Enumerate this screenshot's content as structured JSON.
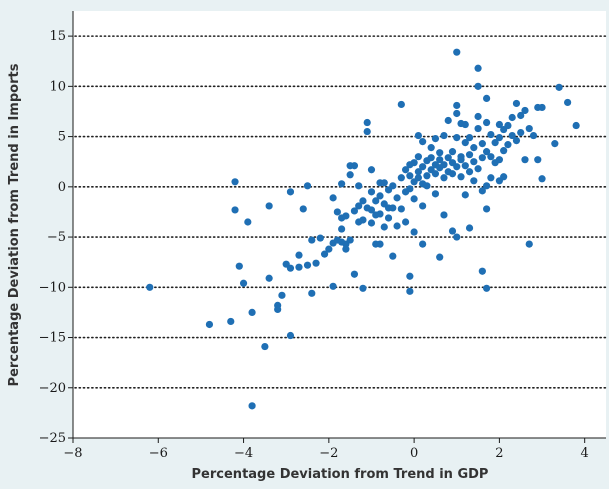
{
  "chart_data": {
    "type": "scatter",
    "title": "",
    "xlabel": "Percentage Deviation from Trend in GDP",
    "ylabel": "Percentage Deviation from Trend in Imports",
    "xlim": [
      -8,
      4.5
    ],
    "ylim": [
      -25,
      17.5
    ],
    "x_ticks": [
      -8,
      -6,
      -4,
      -2,
      0,
      2,
      4
    ],
    "y_ticks": [
      -25,
      -20,
      -15,
      -10,
      -5,
      0,
      5,
      10,
      15
    ],
    "x_tick_labels": [
      "−8",
      "−6",
      "−4",
      "−2",
      "0",
      "2",
      "4"
    ],
    "y_tick_labels": [
      "−25",
      "−20",
      "−15",
      "−10",
      "−5",
      "0",
      "5",
      "10",
      "15"
    ],
    "grid": "horizontal dotted",
    "point_color": "#1f6fb4",
    "series": [
      {
        "points": [
          [
            -6.2,
            -10.0
          ],
          [
            -4.8,
            -13.7
          ],
          [
            -4.3,
            -13.4
          ],
          [
            -4.2,
            0.5
          ],
          [
            -4.2,
            -2.3
          ],
          [
            -4.1,
            -7.9
          ],
          [
            -4.0,
            -9.6
          ],
          [
            -3.9,
            -3.5
          ],
          [
            -3.8,
            -12.5
          ],
          [
            -3.8,
            -21.8
          ],
          [
            -3.5,
            -15.9
          ],
          [
            -3.4,
            -9.1
          ],
          [
            -3.4,
            -1.9
          ],
          [
            -3.2,
            -11.8
          ],
          [
            -3.2,
            -12.2
          ],
          [
            -3.1,
            -10.8
          ],
          [
            -3.0,
            -7.7
          ],
          [
            -2.9,
            -0.5
          ],
          [
            -2.9,
            -8.1
          ],
          [
            -2.9,
            -14.8
          ],
          [
            -2.7,
            -6.8
          ],
          [
            -2.7,
            -8.0
          ],
          [
            -2.6,
            -2.2
          ],
          [
            -2.5,
            -7.8
          ],
          [
            -2.5,
            0.1
          ],
          [
            -2.4,
            -5.3
          ],
          [
            -2.4,
            -10.6
          ],
          [
            -2.3,
            -7.6
          ],
          [
            -2.2,
            -5.1
          ],
          [
            -2.1,
            -6.7
          ],
          [
            -2.0,
            -6.2
          ],
          [
            -1.9,
            -5.6
          ],
          [
            -1.9,
            -1.1
          ],
          [
            -1.9,
            -9.9
          ],
          [
            -1.8,
            -2.5
          ],
          [
            -1.8,
            -5.3
          ],
          [
            -1.7,
            -3.1
          ],
          [
            -1.7,
            -4.2
          ],
          [
            -1.7,
            -5.5
          ],
          [
            -1.7,
            0.3
          ],
          [
            -1.6,
            -2.9
          ],
          [
            -1.6,
            -5.7
          ],
          [
            -1.6,
            -6.2
          ],
          [
            -1.5,
            -5.3
          ],
          [
            -1.5,
            1.2
          ],
          [
            -1.5,
            2.1
          ],
          [
            -1.4,
            -2.4
          ],
          [
            -1.4,
            -8.7
          ],
          [
            -1.4,
            2.1
          ],
          [
            -1.3,
            -1.9
          ],
          [
            -1.3,
            -3.5
          ],
          [
            -1.3,
            0.1
          ],
          [
            -1.2,
            -1.4
          ],
          [
            -1.2,
            -3.3
          ],
          [
            -1.2,
            -10.1
          ],
          [
            -1.1,
            -2.1
          ],
          [
            -1.1,
            5.5
          ],
          [
            -1.1,
            6.4
          ],
          [
            -1.0,
            -0.5
          ],
          [
            -1.0,
            -2.3
          ],
          [
            -1.0,
            -3.6
          ],
          [
            -1.0,
            1.7
          ],
          [
            -0.9,
            -1.4
          ],
          [
            -0.9,
            -5.7
          ],
          [
            -0.9,
            -2.8
          ],
          [
            -0.8,
            -0.9
          ],
          [
            -0.8,
            -2.7
          ],
          [
            -0.8,
            0.4
          ],
          [
            -0.8,
            -5.7
          ],
          [
            -0.7,
            -1.7
          ],
          [
            -0.7,
            -4.0
          ],
          [
            -0.7,
            0.4
          ],
          [
            -0.6,
            -2.1
          ],
          [
            -0.6,
            -3.1
          ],
          [
            -0.6,
            -0.3
          ],
          [
            -0.5,
            -2.1
          ],
          [
            -0.5,
            0.1
          ],
          [
            -0.5,
            -6.9
          ],
          [
            -0.4,
            -1.1
          ],
          [
            -0.4,
            -3.9
          ],
          [
            -0.3,
            8.2
          ],
          [
            -0.3,
            0.9
          ],
          [
            -0.3,
            -2.2
          ],
          [
            -0.2,
            -0.5
          ],
          [
            -0.2,
            1.7
          ],
          [
            -0.2,
            -3.5
          ],
          [
            -0.1,
            1.1
          ],
          [
            -0.1,
            -0.2
          ],
          [
            -0.1,
            2.2
          ],
          [
            -0.1,
            -8.9
          ],
          [
            -0.1,
            -10.4
          ],
          [
            0.0,
            0.5
          ],
          [
            0.0,
            2.4
          ],
          [
            0.0,
            -1.2
          ],
          [
            0.0,
            -4.5
          ],
          [
            0.1,
            0.9
          ],
          [
            0.1,
            3.0
          ],
          [
            0.1,
            5.1
          ],
          [
            0.1,
            1.5
          ],
          [
            0.2,
            0.3
          ],
          [
            0.2,
            2.0
          ],
          [
            0.2,
            4.5
          ],
          [
            0.2,
            -1.9
          ],
          [
            0.2,
            -5.7
          ],
          [
            0.3,
            1.1
          ],
          [
            0.3,
            2.6
          ],
          [
            0.3,
            0.1
          ],
          [
            0.4,
            1.7
          ],
          [
            0.4,
            3.9
          ],
          [
            0.4,
            2.9
          ],
          [
            0.5,
            2.2
          ],
          [
            0.5,
            -0.7
          ],
          [
            0.5,
            4.8
          ],
          [
            0.5,
            1.3
          ],
          [
            0.6,
            1.9
          ],
          [
            0.6,
            3.4
          ],
          [
            0.6,
            -7.0
          ],
          [
            0.6,
            2.7
          ],
          [
            0.7,
            -2.8
          ],
          [
            0.7,
            0.9
          ],
          [
            0.7,
            5.1
          ],
          [
            0.7,
            2.2
          ],
          [
            0.8,
            2.9
          ],
          [
            0.8,
            1.5
          ],
          [
            0.8,
            6.6
          ],
          [
            0.9,
            -4.4
          ],
          [
            0.9,
            2.4
          ],
          [
            0.9,
            3.5
          ],
          [
            0.9,
            1.3
          ],
          [
            1.0,
            13.4
          ],
          [
            1.0,
            7.3
          ],
          [
            1.0,
            8.1
          ],
          [
            1.0,
            4.9
          ],
          [
            1.0,
            2.0
          ],
          [
            1.0,
            -5.0
          ],
          [
            1.1,
            1.0
          ],
          [
            1.1,
            3.0
          ],
          [
            1.1,
            6.3
          ],
          [
            1.1,
            2.7
          ],
          [
            1.2,
            4.4
          ],
          [
            1.2,
            6.2
          ],
          [
            1.2,
            2.1
          ],
          [
            1.2,
            -0.8
          ],
          [
            1.3,
            3.2
          ],
          [
            1.3,
            1.5
          ],
          [
            1.3,
            4.9
          ],
          [
            1.3,
            -4.1
          ],
          [
            1.4,
            0.6
          ],
          [
            1.4,
            2.5
          ],
          [
            1.4,
            3.9
          ],
          [
            1.5,
            7.0
          ],
          [
            1.5,
            11.8
          ],
          [
            1.5,
            10.0
          ],
          [
            1.5,
            1.8
          ],
          [
            1.5,
            5.8
          ],
          [
            1.6,
            2.9
          ],
          [
            1.6,
            4.3
          ],
          [
            1.6,
            -0.4
          ],
          [
            1.6,
            -8.4
          ],
          [
            1.7,
            3.5
          ],
          [
            1.7,
            6.4
          ],
          [
            1.7,
            8.8
          ],
          [
            1.7,
            0.1
          ],
          [
            1.7,
            -2.2
          ],
          [
            1.7,
            -10.1
          ],
          [
            1.8,
            5.2
          ],
          [
            1.8,
            3.0
          ],
          [
            1.8,
            0.9
          ],
          [
            1.9,
            4.4
          ],
          [
            1.9,
            2.4
          ],
          [
            2.0,
            6.2
          ],
          [
            2.0,
            4.9
          ],
          [
            2.0,
            2.7
          ],
          [
            2.0,
            0.6
          ],
          [
            2.1,
            5.7
          ],
          [
            2.1,
            3.6
          ],
          [
            2.1,
            1.0
          ],
          [
            2.2,
            6.1
          ],
          [
            2.2,
            4.2
          ],
          [
            2.3,
            5.1
          ],
          [
            2.3,
            6.9
          ],
          [
            2.4,
            8.3
          ],
          [
            2.4,
            4.6
          ],
          [
            2.5,
            7.1
          ],
          [
            2.5,
            5.4
          ],
          [
            2.6,
            2.7
          ],
          [
            2.6,
            7.6
          ],
          [
            2.7,
            5.8
          ],
          [
            2.7,
            -5.7
          ],
          [
            2.8,
            5.1
          ],
          [
            2.9,
            7.9
          ],
          [
            2.9,
            2.7
          ],
          [
            3.0,
            7.9
          ],
          [
            3.0,
            0.8
          ],
          [
            3.3,
            4.3
          ],
          [
            3.4,
            9.9
          ],
          [
            3.6,
            8.4
          ],
          [
            3.8,
            6.1
          ]
        ]
      }
    ]
  }
}
